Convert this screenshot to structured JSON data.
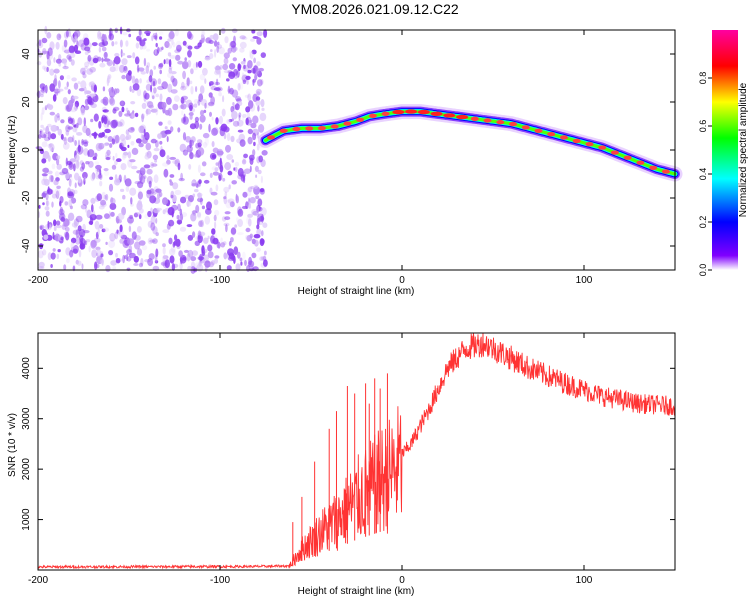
{
  "title": "YM08.2026.021.09.12.C22",
  "chart_data": [
    {
      "type": "heatmap",
      "name": "spectrogram",
      "xlabel": "Height of straight line (km)",
      "ylabel": "Frequency (Hz)",
      "xlim": [
        -200,
        150
      ],
      "ylim": [
        -50,
        50
      ],
      "xticks": [
        -200,
        -100,
        0,
        100
      ],
      "yticks": [
        -40,
        -20,
        0,
        20,
        40
      ],
      "colorbar": {
        "label": "Normalized spectral amplitude",
        "range": [
          0,
          1
        ],
        "ticks": [
          0.0,
          0.2,
          0.4,
          0.6,
          0.8
        ],
        "tick_labels": [
          "0.0",
          "0.2",
          "0.4",
          "0.6",
          "0.8"
        ],
        "colors": [
          "#ffffff",
          "#8000ff",
          "#0000ff",
          "#00ffff",
          "#00ff00",
          "#ffff00",
          "#ff0000",
          "#ff00a0"
        ]
      },
      "noise_region": {
        "x": [
          -200,
          -75
        ]
      },
      "ridge": {
        "x": [
          -75,
          -65,
          -55,
          -45,
          -35,
          -25,
          -18,
          -10,
          0,
          10,
          20,
          30,
          40,
          50,
          60,
          70,
          80,
          90,
          100,
          110,
          120,
          130,
          140,
          150
        ],
        "freq": [
          4,
          8,
          9,
          9,
          10,
          12,
          14,
          15,
          16,
          16,
          15,
          14,
          13,
          12,
          11,
          9,
          7,
          5,
          3,
          1,
          -2,
          -5,
          -8,
          -10
        ]
      }
    },
    {
      "type": "line",
      "name": "snr",
      "xlabel": "Height of straight line (km)",
      "ylabel": "SNR (10 * v/v)",
      "xlim": [
        -200,
        150
      ],
      "ylim": [
        0,
        4700
      ],
      "xticks": [
        -200,
        -100,
        0,
        100
      ],
      "yticks": [
        1000,
        2000,
        3000,
        4000
      ],
      "color": "#ff3333",
      "envelope": {
        "x": [
          -200,
          -80,
          -62,
          -55,
          -45,
          -35,
          -25,
          -15,
          -5,
          5,
          15,
          25,
          35,
          45,
          55,
          70,
          90,
          110,
          130,
          150
        ],
        "y": [
          60,
          70,
          80,
          450,
          800,
          1100,
          1500,
          1800,
          2100,
          2500,
          3200,
          4000,
          4400,
          4500,
          4300,
          4000,
          3700,
          3450,
          3300,
          3250
        ]
      },
      "spikes": {
        "x": [
          -60,
          -55,
          -48,
          -40,
          -36,
          -30,
          -26,
          -20,
          -18,
          -15,
          -12,
          -8
        ],
        "y": [
          950,
          1450,
          2150,
          2800,
          3150,
          3650,
          3500,
          3700,
          3300,
          3800,
          3600,
          3900
        ]
      }
    }
  ]
}
